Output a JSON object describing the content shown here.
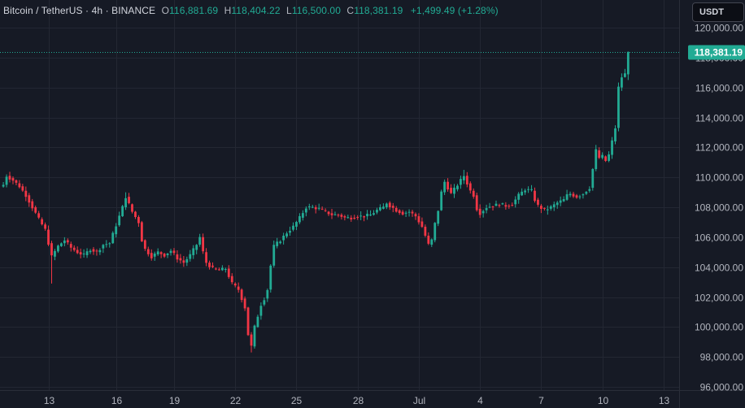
{
  "legend": {
    "symbol": "Bitcoin / TetherUS · 4h · BINANCE",
    "o_label": "O",
    "o_value": "116,881.69",
    "h_label": "H",
    "h_value": "118,404.22",
    "l_label": "L",
    "l_value": "116,500.00",
    "c_label": "C",
    "c_value": "118,381.19",
    "change": "+1,499.49 (+1.28%)"
  },
  "currency_button": "USDT",
  "colors": {
    "background": "#161a25",
    "grid": "#232733",
    "up": "#22ab94",
    "down": "#f23645",
    "axis_text": "#b2b5be",
    "last_price_line": "#22ab94"
  },
  "chart_data": {
    "type": "candlestick",
    "interval": "4h",
    "ylim": [
      96000,
      121000
    ],
    "yticks": [
      {
        "value": 96000,
        "label": "96,000.00"
      },
      {
        "value": 98000,
        "label": "98,000.00"
      },
      {
        "value": 100000,
        "label": "100,000.00"
      },
      {
        "value": 102000,
        "label": "102,000.00"
      },
      {
        "value": 104000,
        "label": "104,000.00"
      },
      {
        "value": 106000,
        "label": "106,000.00"
      },
      {
        "value": 108000,
        "label": "108,000.00"
      },
      {
        "value": 110000,
        "label": "110,000.00"
      },
      {
        "value": 112000,
        "label": "112,000.00"
      },
      {
        "value": 114000,
        "label": "114,000.00"
      },
      {
        "value": 116000,
        "label": "116,000.00"
      },
      {
        "value": 118000,
        "label": "118,000.00"
      },
      {
        "value": 120000,
        "label": "120,000.00"
      }
    ],
    "xlim": [
      -2,
      227
    ],
    "xticks": [
      {
        "index": 14,
        "label": "13"
      },
      {
        "index": 35,
        "label": "16"
      },
      {
        "index": 53,
        "label": "19"
      },
      {
        "index": 72,
        "label": "22"
      },
      {
        "index": 91,
        "label": "25"
      },
      {
        "index": 110,
        "label": "28"
      },
      {
        "index": 129,
        "label": "Jul"
      },
      {
        "index": 148,
        "label": "4"
      },
      {
        "index": 167,
        "label": "7"
      },
      {
        "index": 186,
        "label": "10"
      },
      {
        "index": 205,
        "label": "13"
      }
    ],
    "last_price": 118381.19,
    "last_price_label": "118,381.19",
    "keypoints": [
      [
        0,
        109500
      ],
      [
        1,
        110100
      ],
      [
        3,
        109800
      ],
      [
        5,
        109400
      ],
      [
        7,
        108800
      ],
      [
        9,
        108000
      ],
      [
        11,
        107200
      ],
      [
        13,
        106500
      ],
      [
        15,
        104700
      ],
      [
        17,
        105400
      ],
      [
        19,
        105800
      ],
      [
        21,
        105300
      ],
      [
        23,
        105000
      ],
      [
        25,
        104800
      ],
      [
        27,
        105200
      ],
      [
        29,
        105000
      ],
      [
        31,
        105500
      ],
      [
        33,
        105600
      ],
      [
        35,
        106800
      ],
      [
        37,
        108000
      ],
      [
        38,
        108700
      ],
      [
        40,
        107700
      ],
      [
        42,
        107000
      ],
      [
        43,
        105800
      ],
      [
        44,
        105200
      ],
      [
        46,
        104700
      ],
      [
        48,
        105000
      ],
      [
        50,
        104800
      ],
      [
        52,
        105100
      ],
      [
        54,
        104600
      ],
      [
        56,
        104300
      ],
      [
        58,
        104800
      ],
      [
        60,
        105500
      ],
      [
        61,
        106000
      ],
      [
        62,
        105000
      ],
      [
        63,
        104300
      ],
      [
        65,
        103900
      ],
      [
        67,
        103800
      ],
      [
        69,
        103900
      ],
      [
        71,
        102900
      ],
      [
        73,
        102500
      ],
      [
        75,
        101300
      ],
      [
        76,
        99500
      ],
      [
        77,
        98700
      ],
      [
        78,
        100000
      ],
      [
        80,
        101500
      ],
      [
        81,
        101900
      ],
      [
        82,
        102500
      ],
      [
        83,
        104100
      ],
      [
        84,
        105400
      ],
      [
        86,
        105800
      ],
      [
        88,
        106300
      ],
      [
        90,
        106700
      ],
      [
        92,
        107300
      ],
      [
        94,
        108000
      ],
      [
        96,
        108000
      ],
      [
        98,
        107900
      ],
      [
        100,
        107700
      ],
      [
        102,
        107500
      ],
      [
        104,
        107500
      ],
      [
        106,
        107300
      ],
      [
        108,
        107300
      ],
      [
        110,
        107400
      ],
      [
        112,
        107400
      ],
      [
        114,
        107500
      ],
      [
        116,
        107800
      ],
      [
        118,
        108000
      ],
      [
        119,
        108300
      ],
      [
        120,
        108100
      ],
      [
        122,
        107800
      ],
      [
        124,
        107600
      ],
      [
        126,
        107700
      ],
      [
        128,
        107400
      ],
      [
        130,
        106700
      ],
      [
        131,
        106100
      ],
      [
        132,
        105500
      ],
      [
        133,
        105800
      ],
      [
        134,
        106900
      ],
      [
        135,
        107800
      ],
      [
        136,
        109000
      ],
      [
        137,
        109700
      ],
      [
        138,
        109300
      ],
      [
        139,
        108900
      ],
      [
        141,
        109500
      ],
      [
        143,
        110100
      ],
      [
        144,
        109600
      ],
      [
        145,
        109100
      ],
      [
        146,
        108800
      ],
      [
        147,
        107900
      ],
      [
        148,
        107600
      ],
      [
        150,
        108000
      ],
      [
        152,
        108100
      ],
      [
        154,
        108200
      ],
      [
        156,
        108100
      ],
      [
        158,
        108200
      ],
      [
        160,
        108800
      ],
      [
        162,
        109200
      ],
      [
        164,
        109100
      ],
      [
        165,
        108500
      ],
      [
        166,
        108100
      ],
      [
        168,
        107800
      ],
      [
        170,
        108000
      ],
      [
        172,
        108300
      ],
      [
        174,
        108500
      ],
      [
        175,
        108800
      ],
      [
        176,
        108900
      ],
      [
        178,
        108700
      ],
      [
        180,
        108900
      ],
      [
        182,
        109300
      ],
      [
        184,
        111800
      ],
      [
        185,
        111300
      ],
      [
        186,
        111400
      ],
      [
        187,
        111100
      ],
      [
        188,
        111500
      ],
      [
        190,
        113300
      ],
      [
        191,
        116000
      ],
      [
        192,
        116700
      ],
      [
        193,
        116900
      ],
      [
        194,
        118381
      ]
    ]
  }
}
